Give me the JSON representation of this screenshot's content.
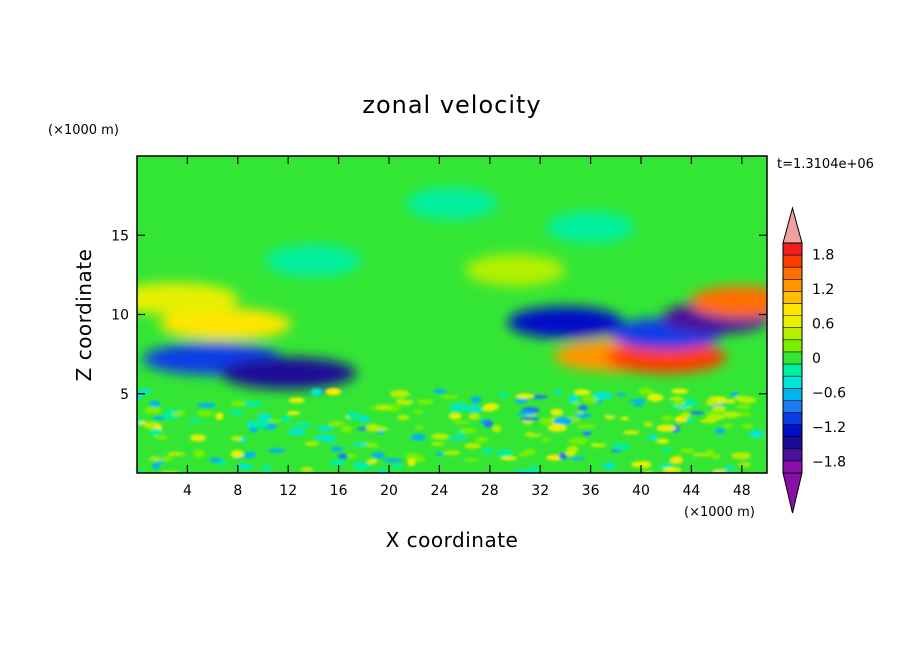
{
  "chart_data": {
    "type": "heatmap",
    "title": "zonal velocity",
    "xlabel": "X coordinate",
    "ylabel": "Z coordinate",
    "x_unit": "(×1000 m)",
    "y_unit": "(×1000 m)",
    "time_label": "t=1.3104e+06",
    "xlim": [
      0,
      50
    ],
    "ylim": [
      0,
      20
    ],
    "x_ticks": [
      4,
      8,
      12,
      16,
      20,
      24,
      28,
      32,
      36,
      40,
      44,
      48
    ],
    "y_ticks": [
      5,
      10,
      15
    ],
    "value_range": [
      -2.0,
      2.0
    ],
    "colorbar_ticks": [
      "1.8",
      "1.2",
      "0.6",
      "0",
      "−0.6",
      "−1.2",
      "−1.8"
    ],
    "colorbar_tick_values": [
      1.8,
      1.2,
      0.6,
      0,
      -0.6,
      -1.2,
      -1.8
    ],
    "colorbar_colors": [
      "#8a0fa8",
      "#4b0f9c",
      "#1a0c96",
      "#0010c8",
      "#0a3ce6",
      "#1e78f0",
      "#00b4f0",
      "#00e6d7",
      "#00f0a0",
      "#34e634",
      "#78f000",
      "#b4f000",
      "#e6f000",
      "#ffe600",
      "#ffbe00",
      "#ff9600",
      "#ff6e00",
      "#ff3c00",
      "#f01e1e"
    ],
    "colorbar_over_color": "#f0a0a0",
    "colorbar_under_color": "#8a0fa8",
    "features": [
      {
        "x": 6,
        "z": 7.2,
        "value": -1.1
      },
      {
        "x": 12,
        "z": 6.3,
        "value": -1.4
      },
      {
        "x": 7,
        "z": 9.4,
        "value": 0.9
      },
      {
        "x": 3,
        "z": 11.0,
        "value": 0.6
      },
      {
        "x": 38,
        "z": 7.4,
        "value": 1.2
      },
      {
        "x": 42,
        "z": 7.3,
        "value": 1.6
      },
      {
        "x": 34,
        "z": 9.5,
        "value": -1.2
      },
      {
        "x": 42,
        "z": 8.8,
        "value": -1.0
      },
      {
        "x": 46,
        "z": 9.8,
        "value": -1.7
      },
      {
        "x": 48,
        "z": 10.8,
        "value": 1.5
      },
      {
        "x": 30,
        "z": 12.8,
        "value": 0.4
      },
      {
        "x": 14,
        "z": 13.4,
        "value": -0.3
      },
      {
        "x": 25,
        "z": 17.0,
        "value": -0.2
      },
      {
        "x": 36,
        "z": 15.5,
        "value": -0.3
      }
    ]
  }
}
